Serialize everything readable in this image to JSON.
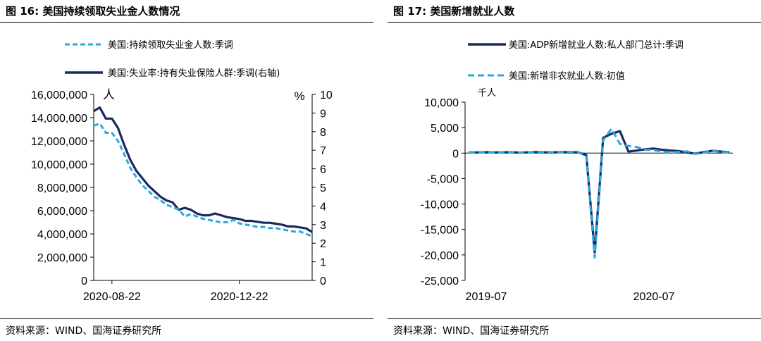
{
  "left_panel": {
    "figure_title": "图 16:  美国持续领取失业金人数情况",
    "source": "资料来源：WIND、国海证券研究所"
  },
  "right_panel": {
    "figure_title": "图 17:  美国新增就业人数",
    "source": "资料来源：WIND、国海证券研究所"
  },
  "colors": {
    "dark_navy": "#1a2a5e",
    "light_blue": "#29a9e0"
  },
  "chart_data": [
    {
      "type": "line",
      "title": "",
      "y_unit_label": "人",
      "y2_unit_label": "%",
      "x_tick_labels": [
        "2020-08-22",
        "2020-12-22"
      ],
      "y_tick_labels": [
        "0",
        "2,000,000",
        "4,000,000",
        "6,000,000",
        "8,000,000",
        "10,000,000",
        "12,000,000",
        "14,000,000",
        "16,000,000"
      ],
      "y2_tick_labels": [
        "0",
        "1",
        "2",
        "3",
        "4",
        "5",
        "6",
        "7",
        "8",
        "9",
        "10"
      ],
      "ylim": [
        0,
        16000000
      ],
      "y2lim": [
        0,
        10
      ],
      "grid": false,
      "legend_position": "top-left",
      "series": [
        {
          "name": "美国:持续领取失业金人数:季调",
          "axis": "left",
          "style": "dashed",
          "color": "#29a9e0",
          "values": [
            13300000,
            13500000,
            12700000,
            12700000,
            12000000,
            10900000,
            9700000,
            8900000,
            8200000,
            7700000,
            7200000,
            6900000,
            6500000,
            6300000,
            6100000,
            5500000,
            5700000,
            5500000,
            5300000,
            5200000,
            5100000,
            5000000,
            5000000,
            5200000,
            4900000,
            4800000,
            4700000,
            4600000,
            4600000,
            4500000,
            4500000,
            4400000,
            4300000,
            4200000,
            4200000,
            4000000,
            3800000
          ]
        },
        {
          "name": "美国:失业率:持有失业保险人群:季调(右轴)",
          "axis": "right",
          "style": "solid",
          "color": "#1a2a5e",
          "values": [
            9.1,
            9.3,
            8.7,
            8.7,
            8.2,
            7.3,
            6.5,
            5.9,
            5.5,
            5.1,
            4.8,
            4.5,
            4.3,
            4.2,
            3.8,
            3.9,
            3.8,
            3.6,
            3.5,
            3.5,
            3.6,
            3.5,
            3.4,
            3.35,
            3.3,
            3.2,
            3.2,
            3.15,
            3.1,
            3.1,
            3.05,
            3.0,
            2.9,
            2.9,
            2.85,
            2.8,
            2.6
          ]
        }
      ]
    },
    {
      "type": "line",
      "title": "",
      "y_unit_label": "千人",
      "x_tick_labels": [
        "2019-07",
        "2020-07"
      ],
      "y_tick_labels": [
        "-25,000",
        "-20,000",
        "-15,000",
        "-10,000",
        "-5,000",
        "0",
        "5,000",
        "10,000"
      ],
      "ylim": [
        -25000,
        10000
      ],
      "grid": false,
      "legend_position": "top",
      "series": [
        {
          "name": "美国:ADP新增就业人数:私人部门总计:季调",
          "style": "solid",
          "color": "#1a2a5e",
          "values": [
            150,
            120,
            180,
            130,
            150,
            180,
            100,
            150,
            200,
            150,
            150,
            200,
            180,
            150,
            -400,
            -19500,
            3000,
            3800,
            4300,
            300,
            500,
            750,
            900,
            650,
            500,
            400,
            100,
            -100,
            200,
            450,
            300,
            150
          ]
        },
        {
          "name": "美国:新增非农就业人数:初值",
          "style": "dashed",
          "color": "#29a9e0",
          "values": [
            150,
            130,
            130,
            140,
            150,
            170,
            150,
            130,
            250,
            200,
            200,
            150,
            250,
            250,
            -700,
            -20500,
            2500,
            4800,
            1800,
            1400,
            1200,
            650,
            600,
            250,
            150,
            250,
            350,
            -150,
            100,
            450,
            200,
            100
          ]
        }
      ]
    }
  ]
}
